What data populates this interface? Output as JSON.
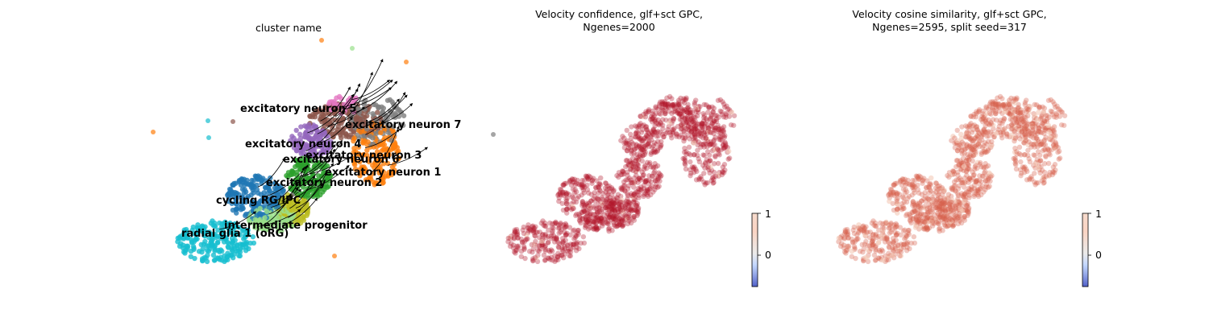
{
  "chart_data": [
    {
      "type": "scatter",
      "title": "cluster name",
      "xlabel": "",
      "ylabel": "",
      "grid": false,
      "annotations": [
        "excitatory neuron 5",
        "excitatory neuron 7",
        "excitatory neuron 4",
        "excitatory neuron 3",
        "excitatory neuron 6",
        "excitatory neuron 1",
        "excitatory neuron 2",
        "cycling RG/IPC",
        "intermediate progenitor",
        "radial glia 1 (oRG)"
      ],
      "colors": {
        "excitatory neuron 5": "#8c564b",
        "excitatory neuron 7": "#7f7f7f",
        "excitatory neuron 4": "#9467bd",
        "excitatory neuron 3": "#ff7f0e",
        "excitatory neuron 6": "#e377c2",
        "excitatory neuron 1": "#2ca02c",
        "excitatory neuron 2": "#bcbd22",
        "cycling RG/IPC": "#1f77b4",
        "intermediate progenitor": "#98df8a",
        "radial glia 1 (oRG)": "#17becf"
      },
      "overlay": "velocity streamlines with arrows"
    },
    {
      "type": "scatter",
      "title": "Velocity confidence, glf+sct GPC,\nNgenes=2000",
      "xlabel": "",
      "ylabel": "",
      "grid": false,
      "point_color": "#b2182b",
      "colorbar": {
        "ticks": [
          "1",
          "0"
        ],
        "range": [
          -0.75,
          1
        ],
        "colormap": "coolwarm"
      }
    },
    {
      "type": "scatter",
      "title": "Velocity cosine similarity, glf+sct GPC,\nNgenes=2595, split seed=317",
      "xlabel": "",
      "ylabel": "",
      "grid": false,
      "point_color": "#d6604d",
      "colorbar": {
        "ticks": [
          "1",
          "0"
        ],
        "range": [
          -0.75,
          1
        ],
        "colormap": "coolwarm"
      }
    }
  ]
}
